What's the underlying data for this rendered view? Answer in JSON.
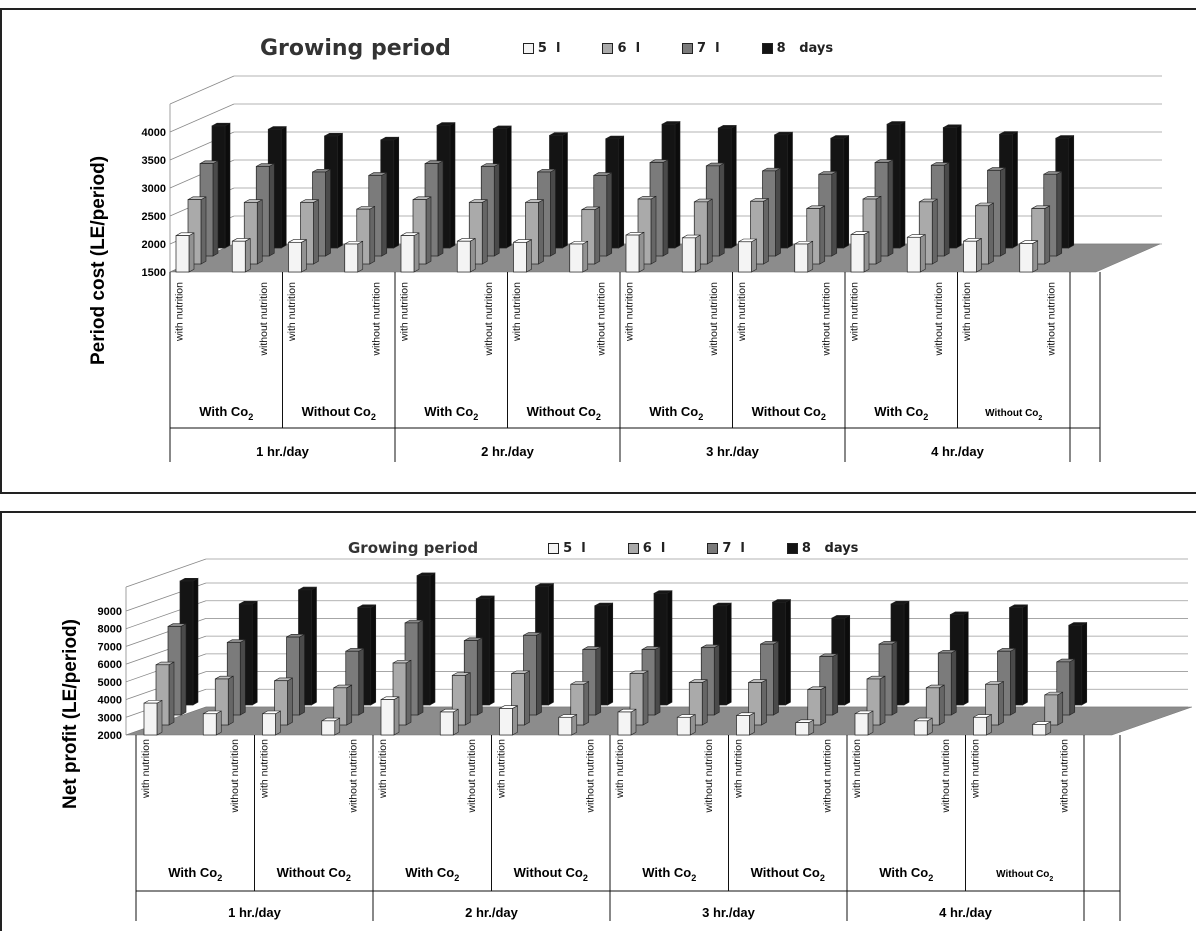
{
  "chart_data": [
    {
      "type": "bar",
      "ylabel": "Period cost (LE/period)",
      "ylim": [
        1500,
        4000
      ],
      "yticks": [
        1500,
        2000,
        2500,
        3000,
        3500,
        4000
      ],
      "legend_title": "Growing period",
      "series": [
        {
          "name": "5",
          "color": "#f4f4f4",
          "values": [
            2150,
            2050,
            2030,
            2000,
            2150,
            2050,
            2030,
            2000,
            2160,
            2110,
            2040,
            2000,
            2170,
            2120,
            2050,
            2010
          ]
        },
        {
          "name": "6",
          "color": "#aaaaaa",
          "values": [
            2650,
            2600,
            2600,
            2480,
            2650,
            2600,
            2600,
            2470,
            2660,
            2610,
            2620,
            2490,
            2660,
            2610,
            2540,
            2490
          ]
        },
        {
          "name": "7",
          "color": "#7b7b7b",
          "values": [
            3150,
            3100,
            3000,
            2940,
            3150,
            3100,
            3000,
            2940,
            3170,
            3110,
            3020,
            2960,
            3170,
            3120,
            3030,
            2960
          ]
        },
        {
          "name": "8",
          "color": "#141414",
          "values": [
            3680,
            3620,
            3500,
            3430,
            3690,
            3630,
            3510,
            3450,
            3710,
            3640,
            3520,
            3460,
            3710,
            3650,
            3530,
            3460
          ]
        }
      ],
      "series_suffix": [
        "l",
        "l",
        "l",
        "days"
      ],
      "categories": [
        "with nutrition",
        "without nutrition",
        "with nutrition",
        "without nutrition",
        "with nutrition",
        "without nutrition",
        "with nutrition",
        "without nutrition",
        "with nutrition",
        "without nutrition",
        "with nutrition",
        "without nutrition",
        "with nutrition",
        "without nutrition",
        "with nutrition",
        "without nutrition"
      ],
      "groups": [
        {
          "label": "With Co",
          "sub": "2"
        },
        {
          "label": "Without Co",
          "sub": "2"
        },
        {
          "label": "With Co",
          "sub": "2"
        },
        {
          "label": "Without Co",
          "sub": "2"
        },
        {
          "label": "With Co",
          "sub": "2"
        },
        {
          "label": "Without Co",
          "sub": "2"
        },
        {
          "label": "With Co",
          "sub": "2"
        },
        {
          "label": "Without Co",
          "sub": "2"
        }
      ],
      "supergroups": [
        "1 hr./day",
        "2 hr./day",
        "3 hr./day",
        "4 hr./day"
      ]
    },
    {
      "type": "bar",
      "ylabel": "Net profit (LE/period)",
      "ylim": [
        2000,
        9000
      ],
      "yticks": [
        2000,
        3000,
        4000,
        5000,
        6000,
        7000,
        8000,
        9000
      ],
      "legend_title": "Growing period",
      "series": [
        {
          "name": "5",
          "color": "#f4f4f4",
          "values": [
            3800,
            3200,
            3200,
            2800,
            4000,
            3300,
            3500,
            3000,
            3300,
            3000,
            3100,
            2700,
            3200,
            2800,
            3000,
            2600
          ]
        },
        {
          "name": "6",
          "color": "#aaaaaa",
          "values": [
            5400,
            4600,
            4500,
            4100,
            5500,
            4800,
            4900,
            4300,
            4900,
            4400,
            4400,
            4000,
            4600,
            4100,
            4300,
            3700
          ]
        },
        {
          "name": "7",
          "color": "#7b7b7b",
          "values": [
            7000,
            6100,
            6400,
            5600,
            7200,
            6200,
            6500,
            5700,
            5700,
            5800,
            6000,
            5300,
            6000,
            5500,
            5600,
            5000
          ]
        },
        {
          "name": "8",
          "color": "#141414",
          "values": [
            9000,
            7700,
            8500,
            7500,
            9300,
            8000,
            8700,
            7600,
            8300,
            7600,
            7800,
            6900,
            7700,
            7100,
            7500,
            6500
          ]
        }
      ],
      "series_suffix": [
        "l",
        "l",
        "l",
        "days"
      ],
      "categories": [
        "with nutrition",
        "without nutrition",
        "with nutrition",
        "without nutrition",
        "with nutrition",
        "without nutrition",
        "with nutrition",
        "without nutrition",
        "with nutrition",
        "without nutrition",
        "with nutrition",
        "without nutrition",
        "with nutrition",
        "without nutrition",
        "with nutrition",
        "without nutrition"
      ],
      "groups": [
        {
          "label": "With Co",
          "sub": "2"
        },
        {
          "label": "Without Co",
          "sub": "2"
        },
        {
          "label": "With Co",
          "sub": "2"
        },
        {
          "label": "Without Co",
          "sub": "2"
        },
        {
          "label": "With Co",
          "sub": "2"
        },
        {
          "label": "Without Co",
          "sub": "2"
        },
        {
          "label": "With Co",
          "sub": "2"
        },
        {
          "label": "Without Co",
          "sub": "2"
        }
      ],
      "supergroups": [
        "1 hr./day",
        "2 hr./day",
        "3 hr./day",
        "4 hr./day"
      ]
    }
  ]
}
